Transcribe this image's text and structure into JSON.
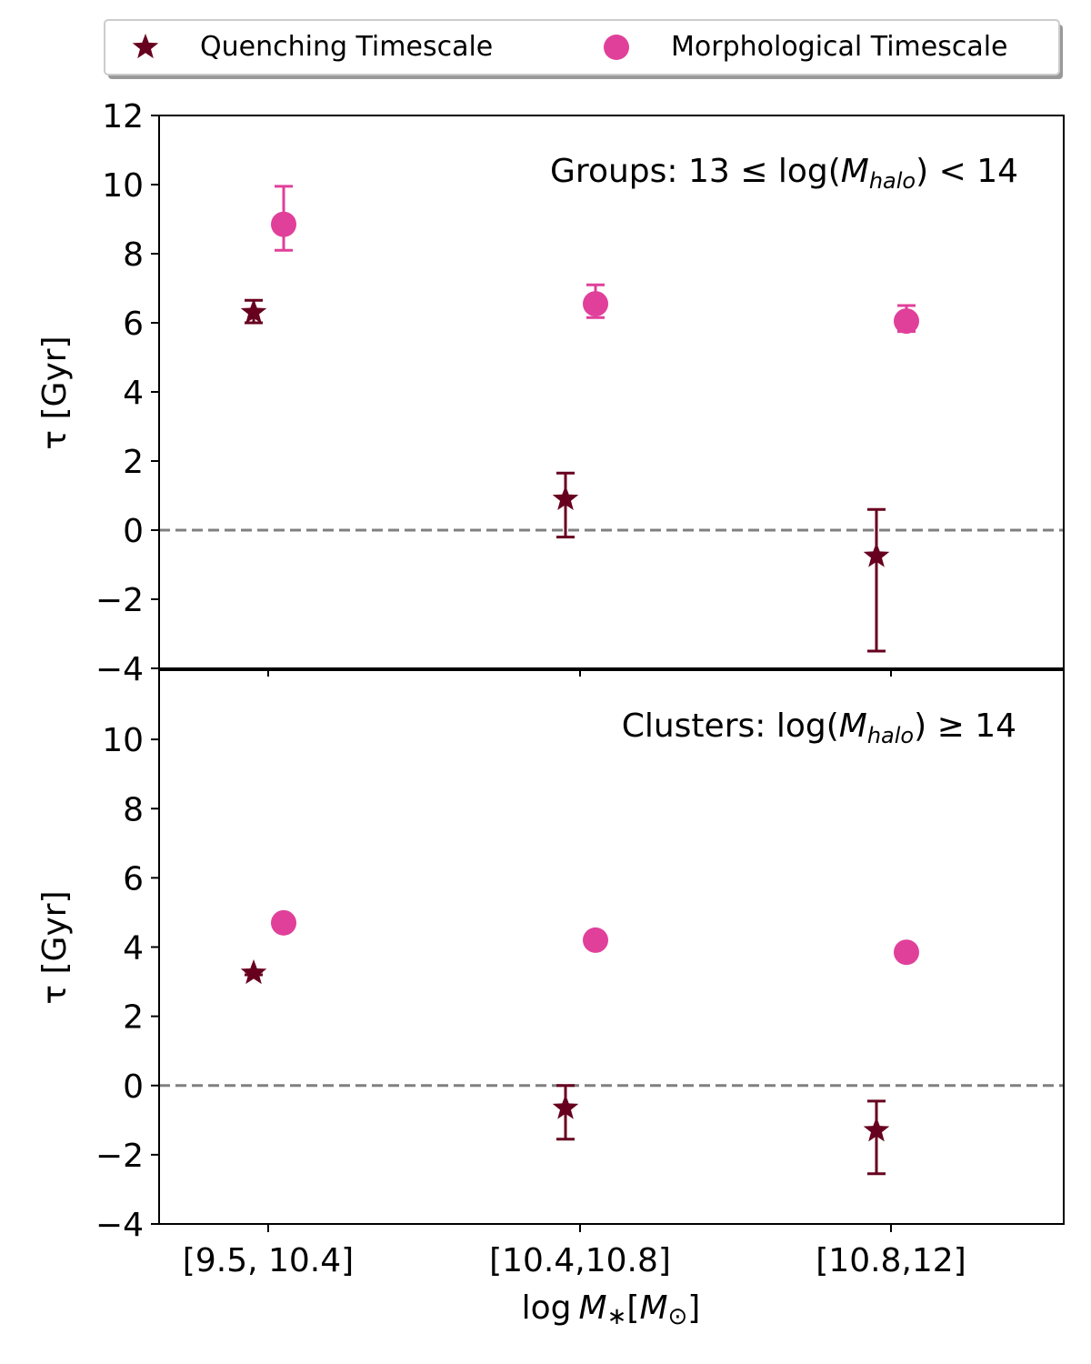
{
  "colors": {
    "quenching": "#67001f",
    "morphological": "#e0409a",
    "zero_line": "#808080",
    "axes": "#000000"
  },
  "legend": {
    "placement": "top-center, above plot",
    "quenching_label": "Quenching Timescale",
    "morphological_label": "Morphological Timescale"
  },
  "chart_data": [
    {
      "type": "scatter",
      "panel": "top",
      "annotation": "Groups: 13 ≤ log(M_halo) < 14",
      "annotation_prefix": "Groups: 13 ≤ log(",
      "annotation_M": "M",
      "annotation_sub": "halo",
      "annotation_suffix": ") < 14",
      "ylabel": "τ [Gyr]",
      "ylim": [
        -4,
        12
      ],
      "yticks": [
        -4,
        -2,
        0,
        2,
        4,
        6,
        8,
        10,
        12
      ],
      "ytick_labels": [
        "−4",
        "−2",
        "0",
        "2",
        "4",
        "6",
        "8",
        "10",
        "12"
      ],
      "categories": [
        "[9.5, 10.4]",
        "[10.4,10.8]",
        "[10.8,12]"
      ],
      "zero_line": 0,
      "series": [
        {
          "name": "Quenching Timescale",
          "marker": "star",
          "values": [
            6.3,
            0.9,
            -0.75
          ],
          "err_low": [
            0.3,
            1.1,
            2.75
          ],
          "err_high": [
            0.35,
            0.75,
            1.35
          ]
        },
        {
          "name": "Morphological Timescale",
          "marker": "circle",
          "values": [
            8.85,
            6.55,
            6.05
          ],
          "err_low": [
            0.75,
            0.4,
            0.3
          ],
          "err_high": [
            1.1,
            0.55,
            0.45
          ]
        }
      ]
    },
    {
      "type": "scatter",
      "panel": "bottom",
      "annotation": "Clusters: log(M_halo) ≥ 14",
      "annotation_prefix": "Clusters: log(",
      "annotation_M": "M",
      "annotation_sub": "halo",
      "annotation_suffix": ") ≥ 14",
      "ylabel": "τ [Gyr]",
      "ylim": [
        -4,
        12
      ],
      "yticks": [
        -4,
        -2,
        0,
        2,
        4,
        6,
        8,
        10
      ],
      "ytick_labels": [
        "−4",
        "−2",
        "0",
        "2",
        "4",
        "6",
        "8",
        "10"
      ],
      "categories": [
        "[9.5, 10.4]",
        "[10.4,10.8]",
        "[10.8,12]"
      ],
      "xlabel": "log M∗[M⊙]",
      "xlabel_parts": {
        "log": "log",
        "M": "M",
        "star": "∗",
        "bracket_open": "[",
        "Msun": "M",
        "sun": "⊙",
        "bracket_close": "]"
      },
      "zero_line": 0,
      "series": [
        {
          "name": "Quenching Timescale",
          "marker": "star",
          "values": [
            3.25,
            -0.65,
            -1.3
          ],
          "err_low": [
            0.05,
            0.9,
            1.25
          ],
          "err_high": [
            0.05,
            0.65,
            0.85
          ]
        },
        {
          "name": "Morphological Timescale",
          "marker": "circle",
          "values": [
            4.7,
            4.2,
            3.85
          ],
          "err_low": [
            0.05,
            0.05,
            0.05
          ],
          "err_high": [
            0.05,
            0.05,
            0.05
          ]
        }
      ]
    }
  ]
}
